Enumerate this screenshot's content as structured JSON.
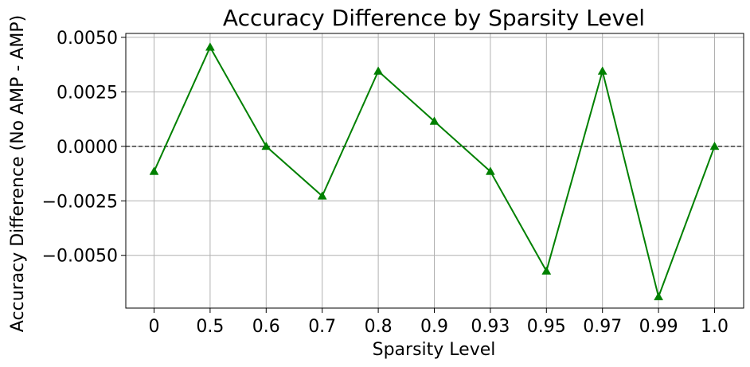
{
  "chart_data": {
    "type": "line",
    "title": "Accuracy Difference by Sparsity Level",
    "xlabel": "Sparsity Level",
    "ylabel": "Accuracy Difference (No AMP - AMP)",
    "categories": [
      "0",
      "0.5",
      "0.6",
      "0.7",
      "0.8",
      "0.9",
      "0.93",
      "0.95",
      "0.97",
      "0.99",
      "1.0"
    ],
    "series": [
      {
        "values": [
          -0.00115,
          0.00455,
          0.0,
          -0.00228,
          0.00345,
          0.00115,
          -0.00115,
          -0.00572,
          0.00345,
          -0.0069,
          0.0
        ],
        "color": "#008000",
        "marker": "triangle-up"
      }
    ],
    "yticks": [
      0.005,
      0.0025,
      0.0,
      -0.0025,
      -0.005
    ],
    "ytick_labels": [
      "0.0050",
      "0.0025",
      "0.0000",
      "−0.0025",
      "−0.0050"
    ],
    "ylim": [
      -0.00742,
      0.00518
    ],
    "reference_line": {
      "y": 0.0,
      "style": "dashed",
      "color": "#000000"
    },
    "grid": true
  }
}
